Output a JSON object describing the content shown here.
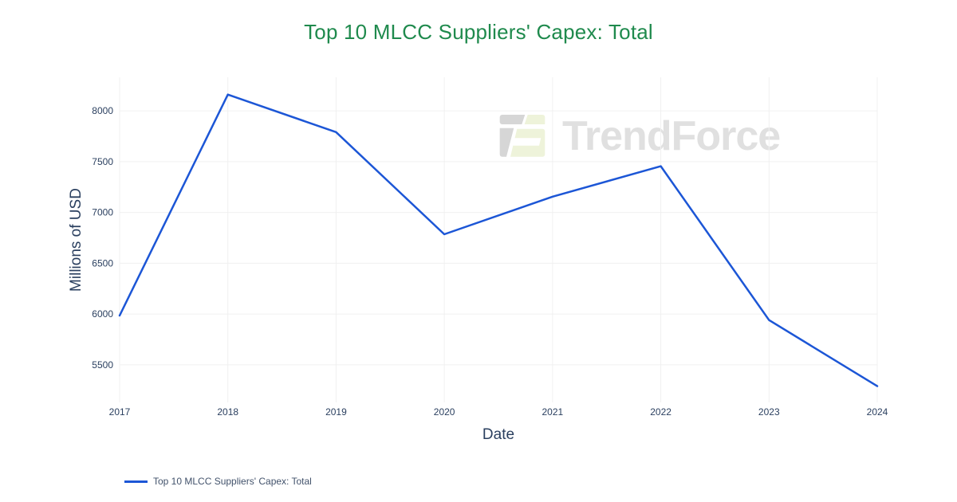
{
  "title": {
    "text": "Top 10 MLCC Suppliers' Capex: Total",
    "color": "#1f8a4d"
  },
  "watermark": {
    "text": "TrendForce",
    "text_color": "#e0e0e0",
    "logo_gray": "#d6d6d6",
    "logo_green": "#eef3da"
  },
  "legend": {
    "items": [
      {
        "label": "Top 10 MLCC Suppliers' Capex: Total",
        "color": "#1c56d6"
      }
    ],
    "text_color": "#42526b"
  },
  "chart_data": {
    "type": "line",
    "title": "Top 10 MLCC Suppliers' Capex: Total",
    "xlabel": "Date",
    "ylabel": "Millions of USD",
    "categories": [
      "2017",
      "2018",
      "2019",
      "2020",
      "2021",
      "2022",
      "2023",
      "2024"
    ],
    "series": [
      {
        "name": "Top 10 MLCC Suppliers' Capex: Total",
        "color": "#1c56d6",
        "values": [
          5985,
          8160,
          7790,
          6785,
          7155,
          7455,
          5940,
          5290
        ]
      }
    ],
    "yticks": [
      5500,
      6000,
      6500,
      7000,
      7500,
      8000
    ],
    "ylim": [
      5130,
      8330
    ],
    "grid": true,
    "legend_position": "bottom-left",
    "colors": {
      "axis_text": "#2a3f5f",
      "grid": "#f0f0f0",
      "background": "#ffffff"
    }
  }
}
